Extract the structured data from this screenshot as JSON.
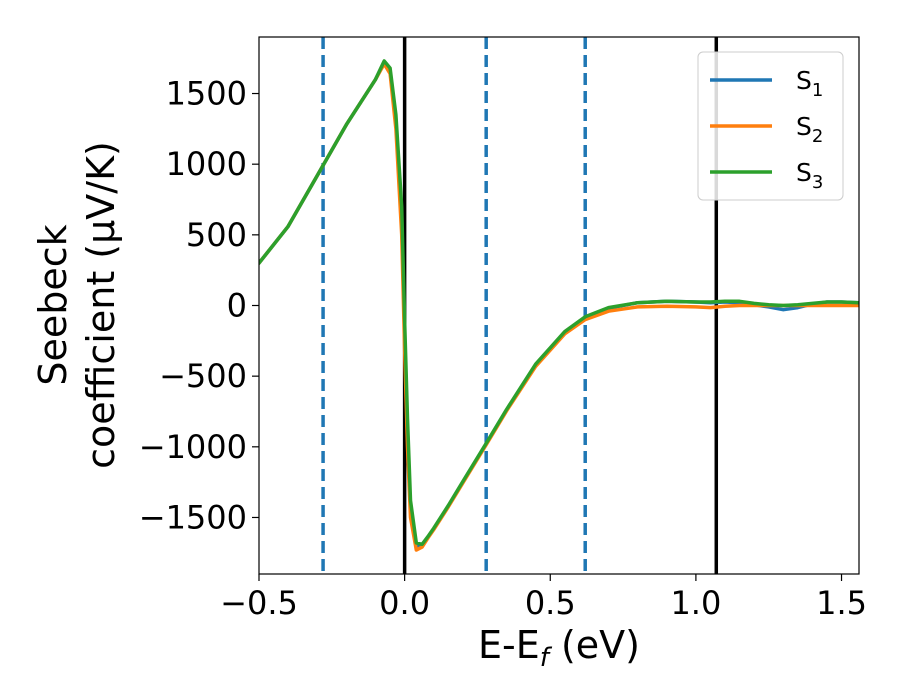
{
  "chart_data": {
    "type": "line",
    "xlabel_main": "E-E",
    "xlabel_sub": "f",
    "xlabel_unit": " (eV)",
    "ylabel_line1": "Seebeck",
    "ylabel_line2": "coefficient  (μV/K)",
    "xlim": [
      -0.5,
      1.56
    ],
    "ylim": [
      -1900,
      1900
    ],
    "x_ticks": [
      -0.5,
      0.0,
      0.5,
      1.0,
      1.5
    ],
    "x_tick_labels": [
      "−0.5",
      "0.0",
      "0.5",
      "1.0",
      "1.5"
    ],
    "y_ticks": [
      -1500,
      -1000,
      -500,
      0,
      500,
      1000,
      1500
    ],
    "y_tick_labels": [
      "−1500",
      "−1000",
      "−500",
      "0",
      "500",
      "1000",
      "1500"
    ],
    "vlines_solid": [
      0.0,
      1.07
    ],
    "vlines_dashed": [
      -0.28,
      0.28,
      0.62
    ],
    "colors": {
      "solid_vline": "#000000",
      "dashed_vline": "#1f77b4",
      "S1": "#1f77b4",
      "S2": "#ff7f0e",
      "S3": "#2ca02c"
    },
    "legend_position": "top-right",
    "series": [
      {
        "name": "S",
        "sub": "1",
        "color": "#1f77b4",
        "x": [
          -0.5,
          -0.4,
          -0.3,
          -0.2,
          -0.1,
          -0.07,
          -0.05,
          -0.03,
          -0.01,
          0.0,
          0.01,
          0.02,
          0.04,
          0.06,
          0.08,
          0.1,
          0.15,
          0.2,
          0.28,
          0.35,
          0.45,
          0.55,
          0.62,
          0.7,
          0.8,
          0.9,
          1.0,
          1.05,
          1.1,
          1.15,
          1.2,
          1.25,
          1.3,
          1.35,
          1.4,
          1.45,
          1.5,
          1.56
        ],
        "y": [
          300,
          560,
          920,
          1280,
          1600,
          1720,
          1660,
          1300,
          600,
          -200,
          -900,
          -1450,
          -1710,
          -1700,
          -1640,
          -1580,
          -1420,
          -1250,
          -980,
          -740,
          -420,
          -190,
          -90,
          -20,
          20,
          30,
          25,
          20,
          25,
          20,
          5,
          -10,
          -30,
          -15,
          10,
          25,
          25,
          20
        ]
      },
      {
        "name": "S",
        "sub": "2",
        "color": "#ff7f0e",
        "x": [
          -0.5,
          -0.4,
          -0.3,
          -0.2,
          -0.1,
          -0.07,
          -0.05,
          -0.03,
          -0.01,
          0.0,
          0.01,
          0.02,
          0.04,
          0.06,
          0.08,
          0.1,
          0.15,
          0.2,
          0.28,
          0.35,
          0.45,
          0.55,
          0.62,
          0.7,
          0.8,
          0.9,
          1.0,
          1.05,
          1.1,
          1.15,
          1.2,
          1.25,
          1.3,
          1.35,
          1.4,
          1.45,
          1.5,
          1.56
        ],
        "y": [
          300,
          560,
          920,
          1280,
          1600,
          1710,
          1640,
          1250,
          500,
          -300,
          -1000,
          -1500,
          -1730,
          -1710,
          -1645,
          -1585,
          -1425,
          -1255,
          -985,
          -745,
          -430,
          -200,
          -100,
          -40,
          -10,
          -5,
          -10,
          -15,
          -5,
          0,
          0,
          0,
          0,
          0,
          0,
          0,
          0,
          0
        ]
      },
      {
        "name": "S",
        "sub": "3",
        "color": "#2ca02c",
        "x": [
          -0.5,
          -0.4,
          -0.3,
          -0.2,
          -0.1,
          -0.07,
          -0.05,
          -0.03,
          -0.01,
          0.0,
          0.01,
          0.02,
          0.04,
          0.06,
          0.08,
          0.1,
          0.15,
          0.2,
          0.28,
          0.35,
          0.45,
          0.55,
          0.62,
          0.7,
          0.8,
          0.9,
          1.0,
          1.05,
          1.1,
          1.15,
          1.2,
          1.25,
          1.3,
          1.35,
          1.4,
          1.45,
          1.5,
          1.56
        ],
        "y": [
          300,
          560,
          920,
          1280,
          1600,
          1730,
          1680,
          1350,
          700,
          -100,
          -800,
          -1380,
          -1680,
          -1690,
          -1635,
          -1575,
          -1415,
          -1245,
          -975,
          -735,
          -415,
          -185,
          -80,
          -15,
          20,
          30,
          25,
          25,
          30,
          30,
          15,
          5,
          0,
          5,
          15,
          25,
          25,
          20
        ]
      }
    ]
  }
}
